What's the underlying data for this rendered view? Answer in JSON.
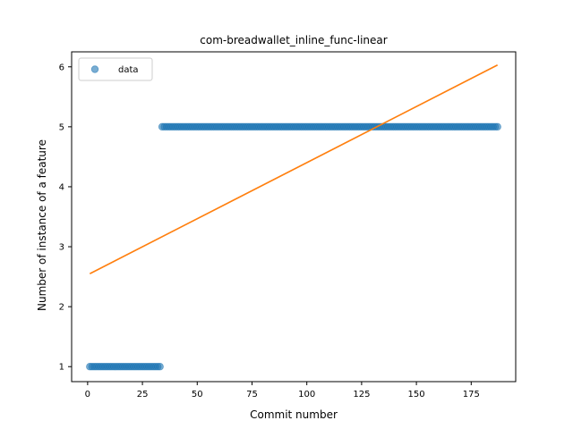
{
  "chart_data": {
    "type": "scatter",
    "title": "com-breadwallet_inline_func-linear",
    "xlabel": "Commit number",
    "ylabel": "Number of instance of a feature",
    "xlim": [
      -7.3,
      195.3
    ],
    "ylim": [
      0.75,
      6.25
    ],
    "xticks": [
      0,
      25,
      50,
      75,
      100,
      125,
      150,
      175
    ],
    "yticks": [
      1,
      2,
      3,
      4,
      5,
      6
    ],
    "grid": false,
    "legend": {
      "placement": "top-left",
      "entries": [
        "data"
      ]
    },
    "series": [
      {
        "name": "data",
        "kind": "scatter",
        "color": "#1f77b4",
        "alpha": 0.6,
        "segments": [
          {
            "x_start": 1,
            "x_end": 33,
            "y": 1
          },
          {
            "x_start": 34,
            "x_end": 187,
            "y": 5
          }
        ]
      },
      {
        "kind": "line",
        "color": "#ff7f0e",
        "x": [
          1,
          187
        ],
        "y": [
          2.55,
          6.03
        ]
      }
    ]
  }
}
